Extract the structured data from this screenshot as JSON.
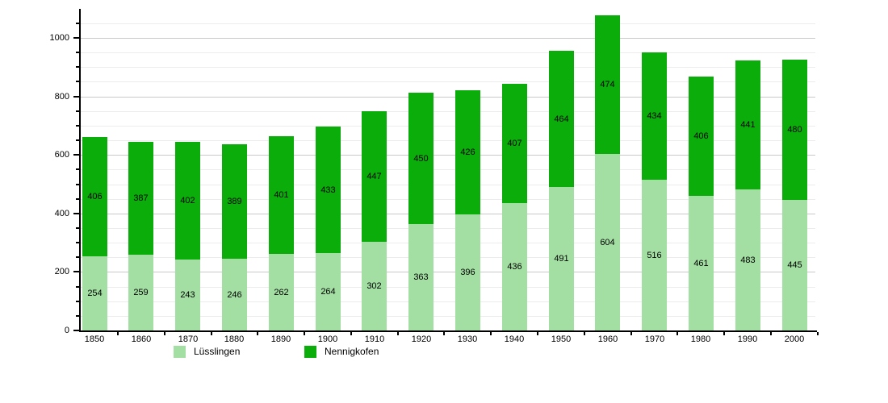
{
  "chart_data": {
    "type": "bar",
    "stacked": true,
    "title": "",
    "categories": [
      "1850",
      "1860",
      "1870",
      "1880",
      "1890",
      "1900",
      "1910",
      "1920",
      "1930",
      "1940",
      "1950",
      "1960",
      "1970",
      "1980",
      "1990",
      "2000"
    ],
    "series": [
      {
        "name": "Lüsslingen",
        "color": "#a3dfa3",
        "values": [
          254,
          259,
          243,
          246,
          262,
          264,
          302,
          363,
          396,
          436,
          491,
          604,
          516,
          461,
          483,
          445
        ]
      },
      {
        "name": "Nennigkofen",
        "color": "#0bad0b",
        "values": [
          406,
          387,
          402,
          389,
          401,
          433,
          447,
          450,
          426,
          407,
          464,
          474,
          434,
          406,
          441,
          480
        ]
      }
    ],
    "totals": [
      660,
      646,
      645,
      635,
      663,
      697,
      749,
      813,
      822,
      843,
      955,
      1078,
      950,
      867,
      924,
      925
    ],
    "xlabel": "",
    "ylabel": "",
    "ylim": [
      0,
      1100
    ],
    "y_major_ticks": [
      "0",
      "200",
      "400",
      "600",
      "800",
      "1000"
    ],
    "y_minor_step": 50,
    "grid": true,
    "bar_value_labels": true,
    "legend_position": "bottom"
  }
}
